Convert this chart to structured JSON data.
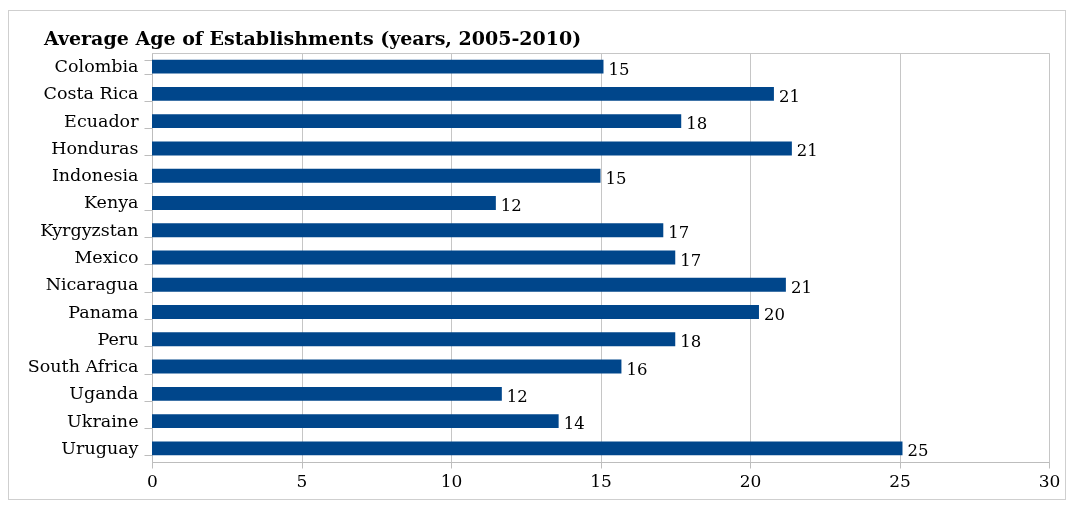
{
  "chart_data": {
    "type": "bar",
    "orientation": "horizontal",
    "title": "Average Age of Establishments (years, 2005-2010)",
    "categories": [
      "Colombia",
      "Costa Rica",
      "Ecuador",
      "Honduras",
      "Indonesia",
      "Kenya",
      "Kyrgyzstan",
      "Mexico",
      "Nicaragua",
      "Panama",
      "Peru",
      "South Africa",
      "Uganda",
      "Ukraine",
      "Uruguay"
    ],
    "values": [
      15.1,
      20.8,
      17.7,
      21.4,
      15.0,
      11.5,
      17.1,
      17.5,
      21.2,
      20.3,
      17.5,
      15.7,
      11.7,
      13.6,
      25.1
    ],
    "value_labels": [
      "15",
      "21",
      "18",
      "21",
      "15",
      "12",
      "17",
      "17",
      "21",
      "20",
      "18",
      "16",
      "12",
      "14",
      "25"
    ],
    "color": "#00468b",
    "xlim": [
      0,
      30
    ],
    "xticks": [
      0,
      5,
      10,
      15,
      20,
      25,
      30
    ],
    "grid": "x"
  }
}
